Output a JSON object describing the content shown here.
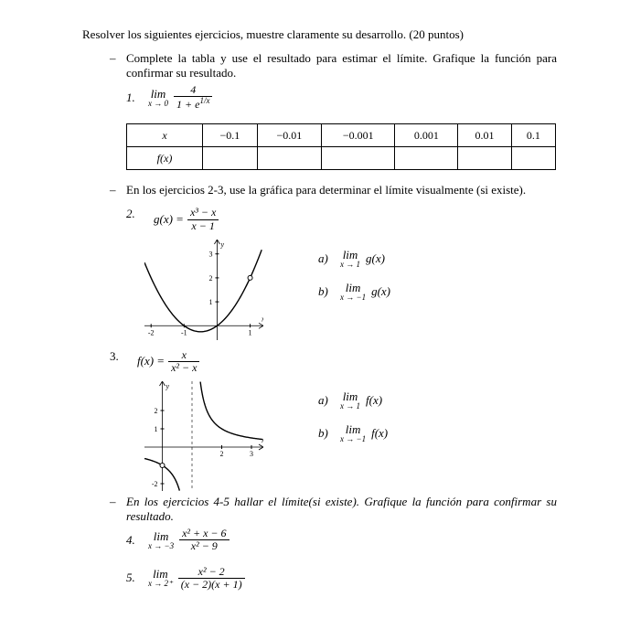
{
  "header": "Resolver los siguientes ejercicios, muestre claramente su desarrollo. (20 puntos)",
  "bullet1": "Complete la tabla y use el resultado para estimar el límite. Grafique la función para confirmar su resultado.",
  "ex1": {
    "num": "1.",
    "lim_top": "lim",
    "lim_bot": "x → 0",
    "frac_n": "4",
    "frac_d": "1 + e",
    "frac_d_exp": "1/x"
  },
  "table": {
    "r1": [
      "x",
      "−0.1",
      "−0.01",
      "−0.001",
      "0.001",
      "0.01",
      "0.1"
    ],
    "r2": [
      "f(x)",
      "",
      "",
      "",
      "",
      "",
      ""
    ]
  },
  "bullet2": "En los ejercicios 2-3, use la gráfica para determinar el límite visualmente (si existe).",
  "ex2": {
    "num": "2.",
    "fn": "g(x) =",
    "frac_n": "x³ − x",
    "frac_d": "x − 1",
    "a_lbl": "a)",
    "b_lbl": "b)",
    "a_lim_top": "lim",
    "a_lim_bot": "x → 1",
    "a_fn": "g(x)",
    "b_lim_top": "lim",
    "b_lim_bot": "x → −1",
    "b_fn": "g(x)",
    "graph": {
      "xmin": -2.2,
      "xmax": 1.4,
      "ymin": -0.6,
      "ymax": 3.6,
      "xticks": [
        -2,
        -1,
        1
      ],
      "yticks": [
        1,
        2,
        3
      ],
      "stroke": "#000",
      "hole_x": 1,
      "hole_y": 2
    }
  },
  "ex3": {
    "num": "3.",
    "fn": "f(x) =",
    "frac_n": "x",
    "frac_d": "x² − x",
    "a_lbl": "a)",
    "b_lbl": "b)",
    "a_lim_top": "lim",
    "a_lim_bot": "x → 1",
    "a_fn": "f(x)",
    "b_lim_top": "lim",
    "b_lim_bot": "x → −1",
    "b_fn": "f(x)",
    "graph": {
      "xmin": -0.6,
      "xmax": 3.4,
      "ymin": -2.4,
      "ymax": 3.6,
      "xticks": [
        2,
        3
      ],
      "yticks": [
        1,
        2,
        -2
      ],
      "stroke": "#000",
      "asym_x": 1,
      "hole_x": 0,
      "hole_y": -1
    }
  },
  "bullet3": "En los ejercicios 4-5 hallar el límite(si existe). Grafique la función para confirmar su resultado.",
  "ex4": {
    "num": "4.",
    "lim_top": "lim",
    "lim_bot": "x → −3",
    "frac_n": "x² + x − 6",
    "frac_d": "x² − 9"
  },
  "ex5": {
    "num": "5.",
    "lim_top": "lim",
    "lim_bot": "x → 2⁺",
    "frac_n": "x² − 2",
    "frac_d": "(x − 2)(x + 1)"
  }
}
